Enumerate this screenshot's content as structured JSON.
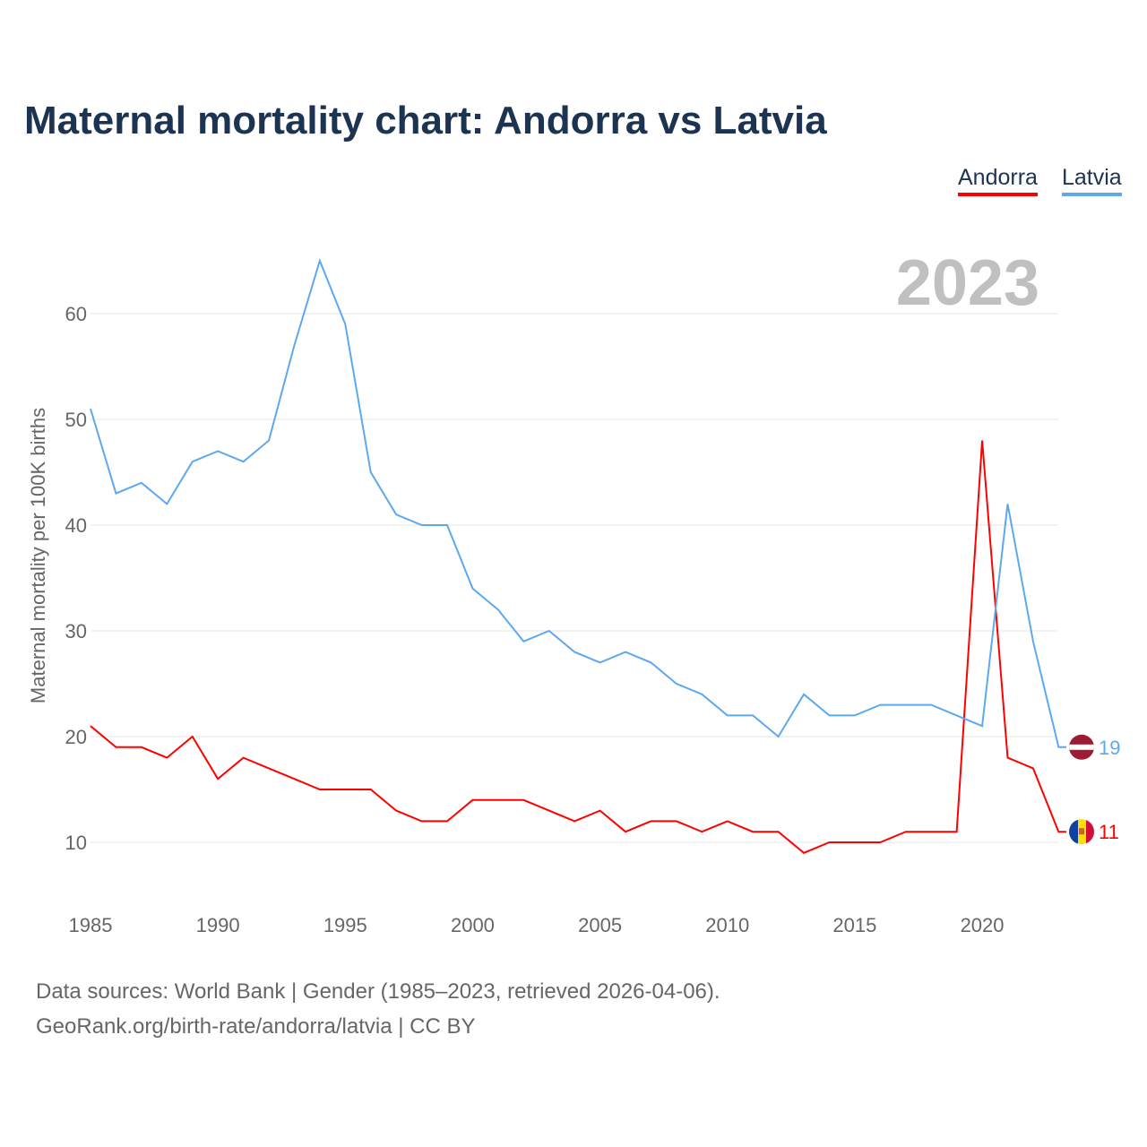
{
  "title": "Maternal mortality chart: Andorra vs Latvia",
  "footer": {
    "line1": "Data sources: World Bank | Gender (1985–2023, retrieved 2026-04-06).",
    "line2": "GeoRank.org/birth-rate/andorra/latvia | CC BY"
  },
  "chart_data": {
    "type": "line",
    "title": "Maternal mortality chart: Andorra vs Latvia",
    "ylabel": "Maternal mortality per 100K births",
    "xlabel": "",
    "year_watermark": "2023",
    "ylim": [
      5,
      65
    ],
    "yticks": [
      10,
      20,
      30,
      40,
      50,
      60
    ],
    "xticks": [
      1985,
      1990,
      1995,
      2000,
      2005,
      2010,
      2015,
      2020
    ],
    "grid": true,
    "legend_position": "top-right",
    "x": [
      1985,
      1986,
      1987,
      1988,
      1989,
      1990,
      1991,
      1992,
      1993,
      1994,
      1995,
      1996,
      1997,
      1998,
      1999,
      2000,
      2001,
      2002,
      2003,
      2004,
      2005,
      2006,
      2007,
      2008,
      2009,
      2010,
      2011,
      2012,
      2013,
      2014,
      2015,
      2016,
      2017,
      2018,
      2019,
      2020,
      2021,
      2022,
      2023
    ],
    "series": [
      {
        "name": "Andorra",
        "color": "#ff0000",
        "end_label": "11",
        "values": [
          21,
          19,
          19,
          18,
          20,
          16,
          18,
          17,
          16,
          15,
          15,
          15,
          13,
          12,
          12,
          14,
          14,
          14,
          13,
          12,
          13,
          11,
          12,
          12,
          11,
          12,
          11,
          11,
          9,
          10,
          10,
          10,
          11,
          11,
          11,
          48,
          18,
          17,
          11
        ]
      },
      {
        "name": "Latvia",
        "color": "#5ea8ee",
        "end_label": "19",
        "values": [
          51,
          43,
          44,
          42,
          46,
          47,
          46,
          48,
          57,
          65,
          59,
          45,
          41,
          40,
          40,
          34,
          32,
          29,
          30,
          28,
          27,
          28,
          27,
          25,
          24,
          22,
          22,
          20,
          24,
          22,
          22,
          23,
          23,
          23,
          22,
          21,
          42,
          29,
          19
        ]
      }
    ]
  }
}
